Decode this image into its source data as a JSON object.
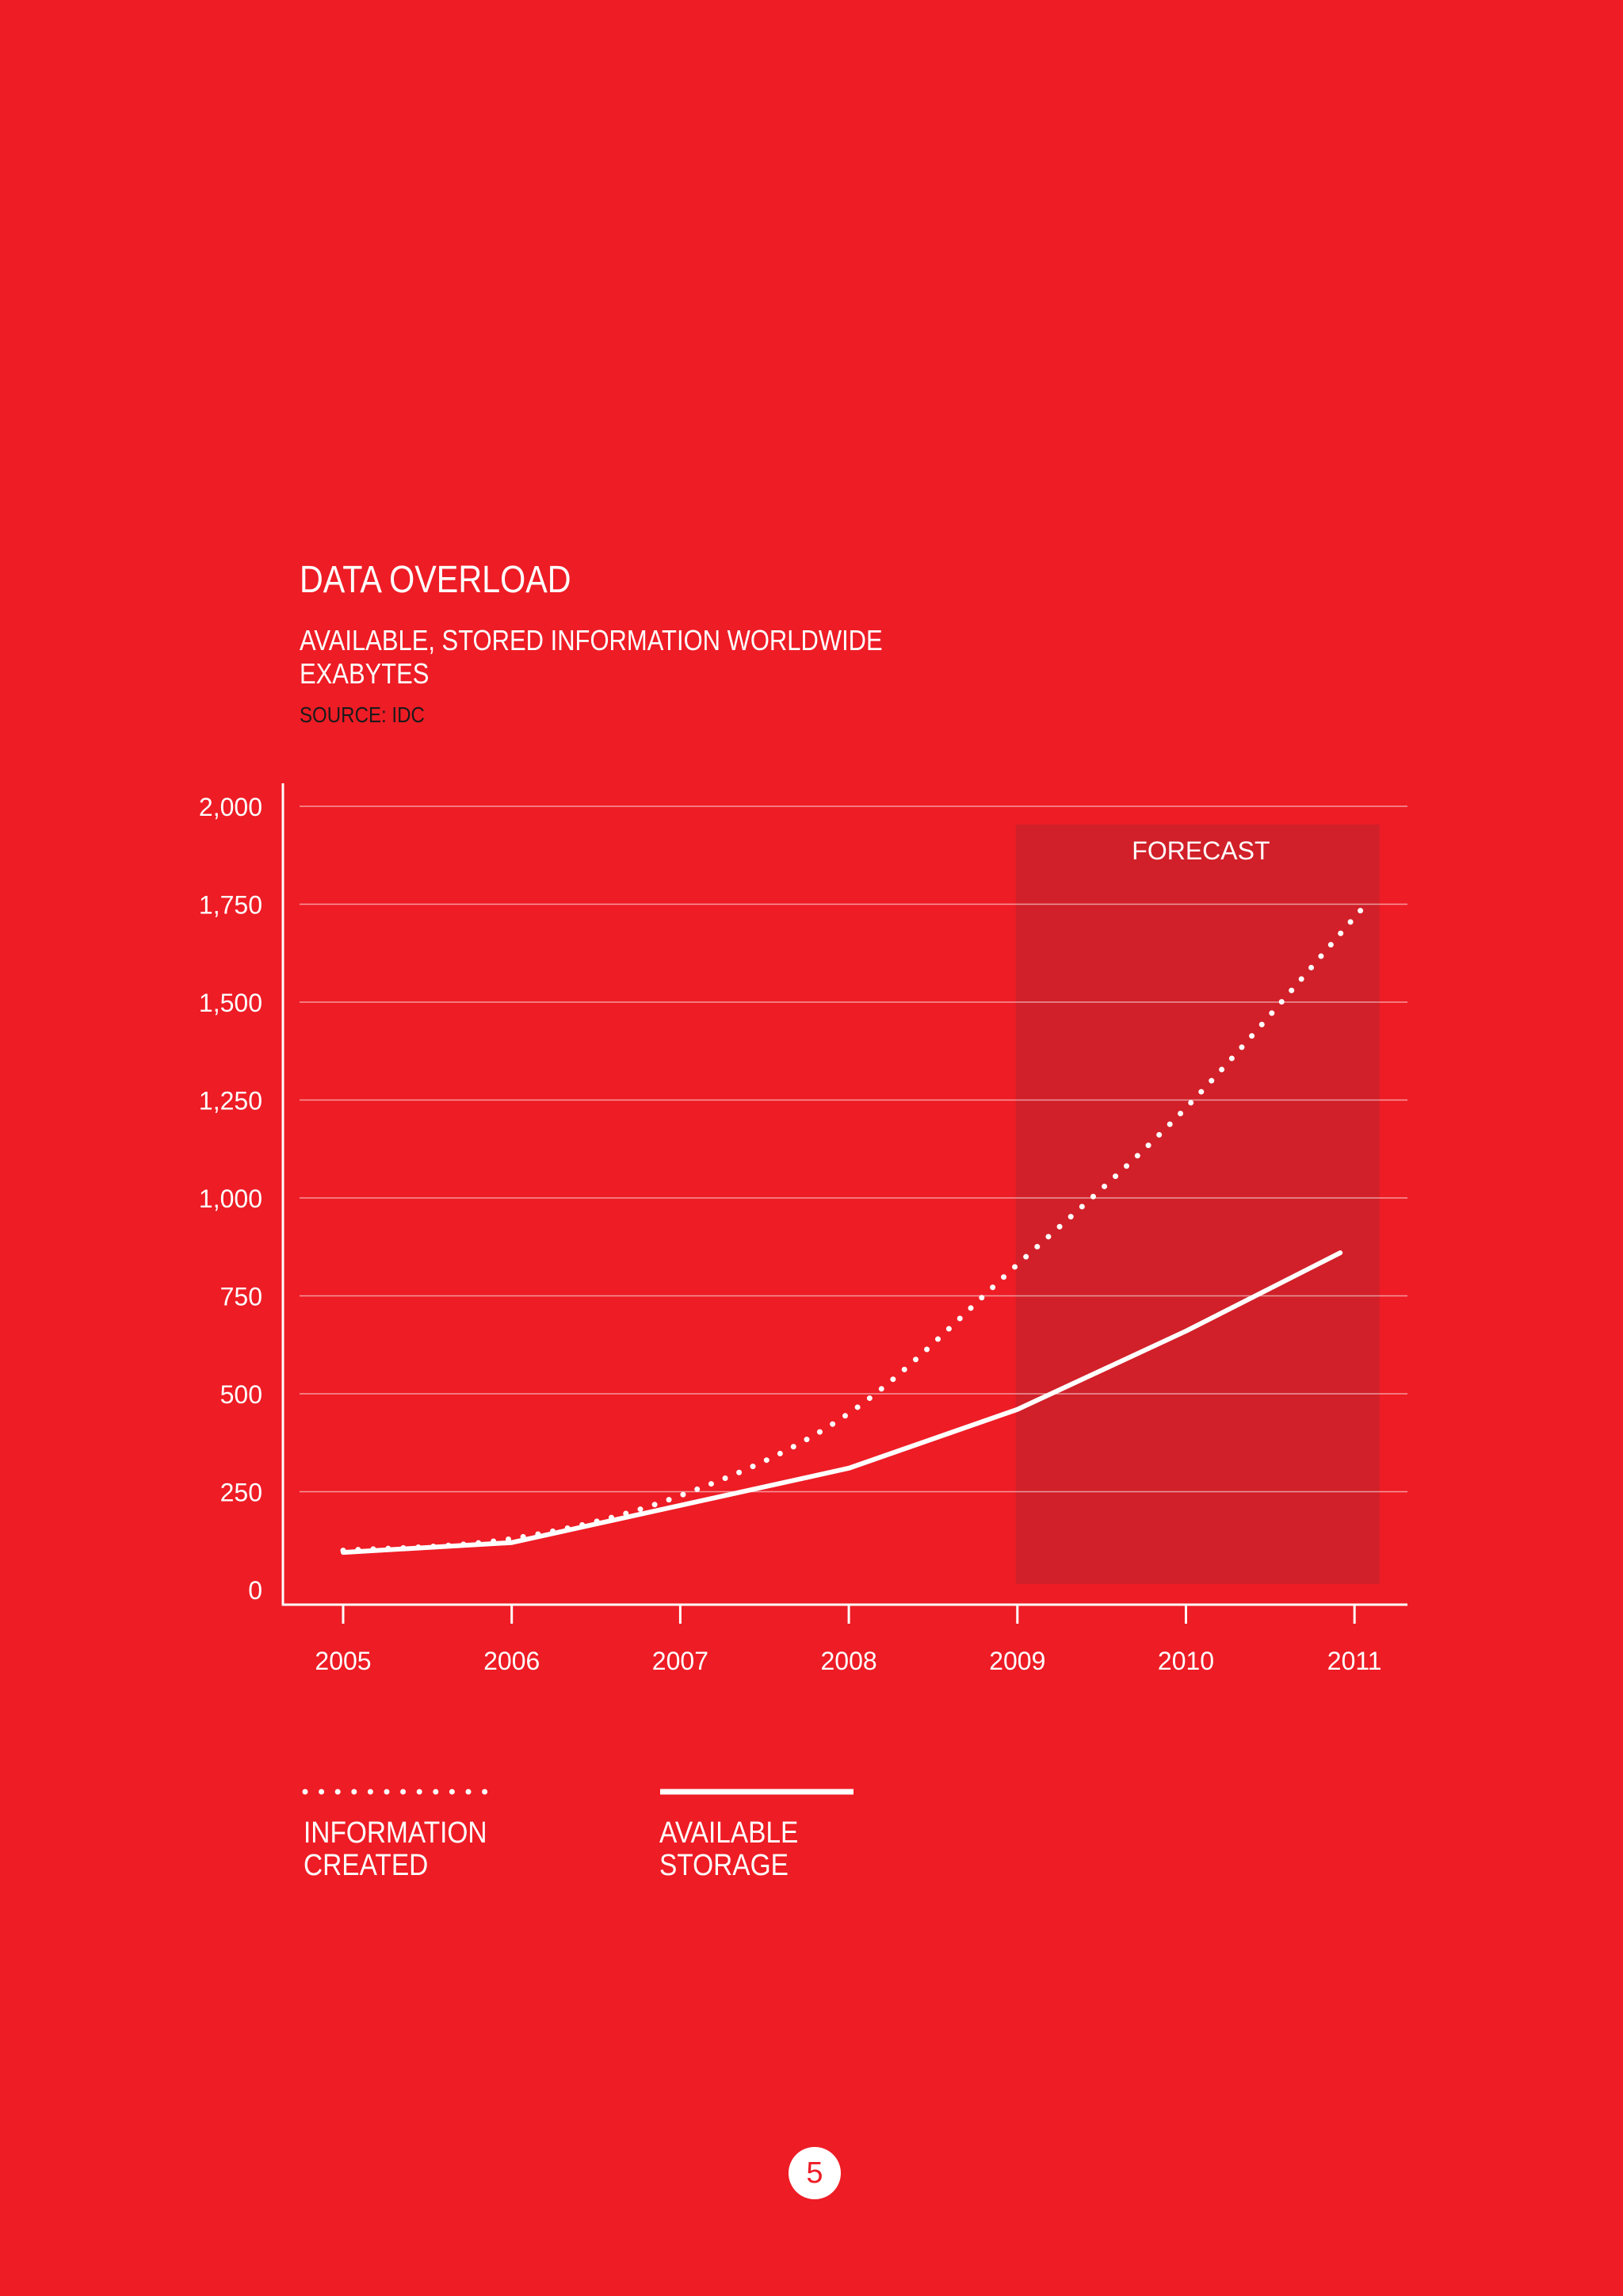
{
  "chart_data": {
    "type": "line",
    "title": "DATA OVERLOAD",
    "subtitle": "AVAILABLE, STORED INFORMATION WORLDWIDE",
    "ylabel": "EXABYTES",
    "source": "SOURCE: IDC",
    "x": [
      "2005",
      "2006",
      "2007",
      "2008",
      "2009",
      "2010",
      "2011"
    ],
    "y_ticks": [
      "0",
      "250",
      "500",
      "750",
      "1,000",
      "1,250",
      "1,500",
      "1,750",
      "2,000"
    ],
    "ylim": [
      0,
      2000
    ],
    "grid": true,
    "forecast_band": {
      "label": "FORECAST",
      "from": "2009",
      "to": "2011"
    },
    "series": [
      {
        "name": "INFORMATION CREATED",
        "style": "dotted",
        "values": [
          100,
          130,
          240,
          450,
          830,
          1230,
          1735
        ]
      },
      {
        "name": "AVAILABLE STORAGE",
        "style": "solid",
        "values": [
          95,
          120,
          215,
          310,
          460,
          660,
          860
        ]
      }
    ],
    "legend_position": "bottom-left"
  },
  "legend": {
    "created_line1": "INFORMATION",
    "created_line2": "CREATED",
    "storage_line1": "AVAILABLE",
    "storage_line2": "STORAGE"
  },
  "page_number": "5",
  "colors": {
    "background": "#ee1c25",
    "forecast_band": "#d12029",
    "lines": "#ffffff",
    "source_text": "#1a1a1a"
  }
}
